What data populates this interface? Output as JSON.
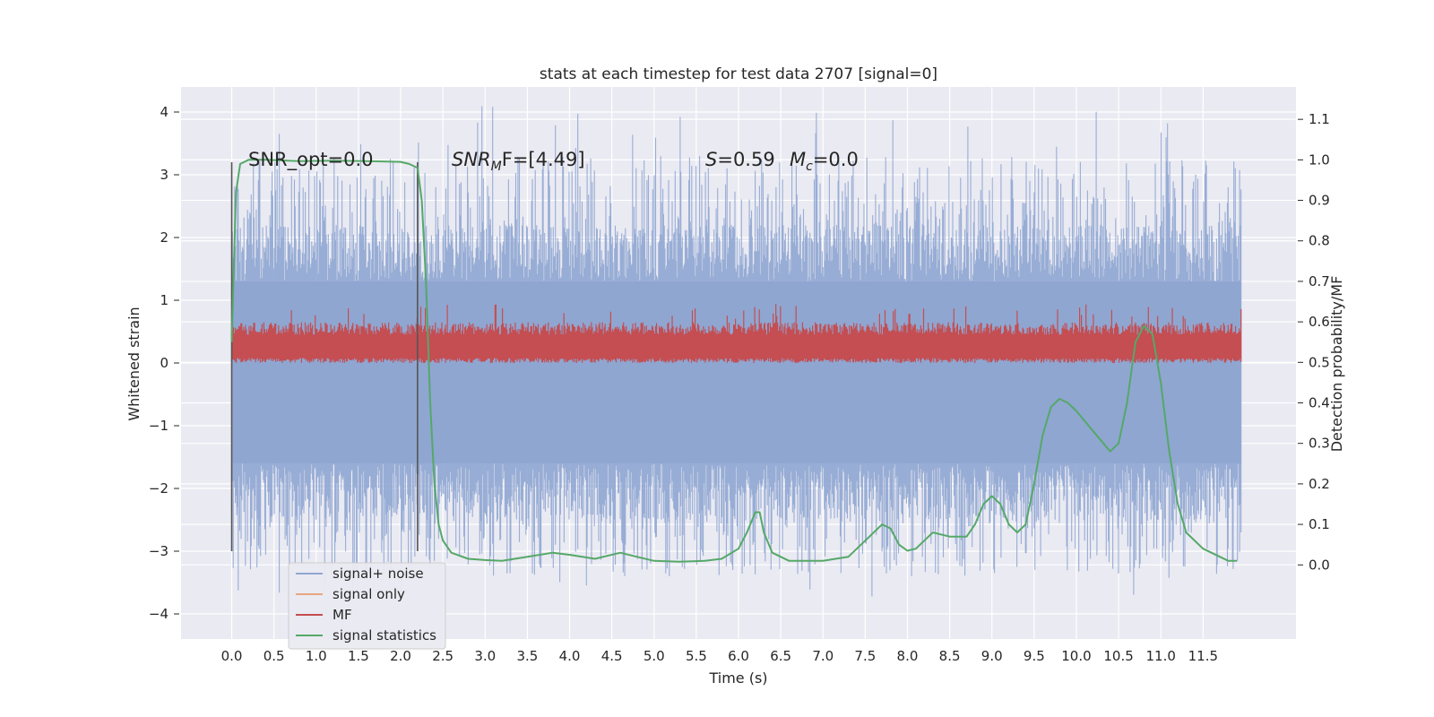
{
  "chart_data": {
    "type": "line",
    "title": "stats at each timestep for test data 2707 [signal=0]",
    "xlabel": "Time (s)",
    "ylabel": "Whitened strain",
    "ylabel_right": "Detection probability/MF",
    "xlim": [
      -0.6,
      12.6
    ],
    "ylim": [
      -4.4,
      4.4
    ],
    "ylim_right": [
      -0.183,
      1.18
    ],
    "x_ticks": [
      "0.0",
      "0.5",
      "1.0",
      "1.5",
      "2.0",
      "2.5",
      "3.0",
      "3.5",
      "4.0",
      "4.5",
      "5.0",
      "5.5",
      "6.0",
      "6.5",
      "7.0",
      "7.5",
      "8.0",
      "8.5",
      "9.0",
      "9.5",
      "10.0",
      "10.5",
      "11.0",
      "11.5"
    ],
    "y_ticks": [
      "4",
      "3",
      "2",
      "1",
      "0",
      "−1",
      "−2",
      "−3",
      "−4"
    ],
    "y2_ticks": [
      "1.1",
      "1.0",
      "0.9",
      "0.8",
      "0.7",
      "0.6",
      "0.5",
      "0.4",
      "0.3",
      "0.2",
      "0.1",
      "0.0"
    ],
    "grid": true,
    "legend_position": "lower-left",
    "annotations": {
      "snr_opt": "SNR_opt=0.0",
      "snr_mf_name": "SNR",
      "snr_mf_sub": "M",
      "snr_mf_rest": "F=[4.49]",
      "s_name": "S",
      "s_value": "=0.59",
      "mc_name": "M",
      "mc_sub": "c",
      "mc_value": "=0.0"
    },
    "window_markers_x": [
      0.0,
      2.2
    ],
    "series": [
      {
        "name": "signal+ noise",
        "color": "#8fa6d1",
        "x_range": [
          0,
          11.95
        ],
        "envelope_approx": [
          -3.8,
          4.1
        ]
      },
      {
        "name": "signal only",
        "color": "#e8a582",
        "values": []
      },
      {
        "name": "MF",
        "color": "#c44e52",
        "x_range": [
          0,
          11.95
        ],
        "range_approx": [
          0.0,
          0.65
        ]
      },
      {
        "name": "signal statistics",
        "color": "#55a868",
        "x": [
          0.0,
          0.05,
          0.1,
          0.15,
          0.2,
          0.4,
          0.8,
          1.2,
          1.6,
          2.0,
          2.1,
          2.2,
          2.25,
          2.3,
          2.35,
          2.4,
          2.45,
          2.5,
          2.6,
          2.8,
          3.0,
          3.2,
          3.5,
          3.8,
          4.0,
          4.3,
          4.6,
          4.8,
          5.0,
          5.3,
          5.6,
          5.8,
          6.0,
          6.1,
          6.2,
          6.25,
          6.3,
          6.4,
          6.6,
          7.0,
          7.3,
          7.5,
          7.7,
          7.8,
          7.9,
          8.0,
          8.1,
          8.2,
          8.3,
          8.5,
          8.7,
          8.8,
          8.9,
          9.0,
          9.1,
          9.2,
          9.3,
          9.4,
          9.5,
          9.6,
          9.7,
          9.8,
          9.9,
          10.0,
          10.2,
          10.4,
          10.5,
          10.6,
          10.7,
          10.8,
          10.9,
          11.0,
          11.1,
          11.2,
          11.3,
          11.5,
          11.8,
          11.9
        ],
        "y": [
          0.55,
          0.92,
          0.99,
          0.995,
          1.0,
          1.0,
          0.997,
          0.998,
          0.997,
          0.995,
          0.99,
          0.98,
          0.9,
          0.7,
          0.4,
          0.2,
          0.1,
          0.06,
          0.03,
          0.015,
          0.012,
          0.01,
          0.02,
          0.03,
          0.025,
          0.015,
          0.03,
          0.02,
          0.01,
          0.008,
          0.01,
          0.015,
          0.04,
          0.08,
          0.13,
          0.13,
          0.08,
          0.03,
          0.01,
          0.01,
          0.02,
          0.06,
          0.1,
          0.09,
          0.05,
          0.035,
          0.04,
          0.06,
          0.08,
          0.07,
          0.07,
          0.1,
          0.15,
          0.17,
          0.15,
          0.1,
          0.08,
          0.1,
          0.2,
          0.32,
          0.39,
          0.41,
          0.4,
          0.38,
          0.33,
          0.28,
          0.3,
          0.4,
          0.55,
          0.59,
          0.57,
          0.45,
          0.28,
          0.15,
          0.08,
          0.04,
          0.01,
          0.01
        ]
      }
    ]
  }
}
